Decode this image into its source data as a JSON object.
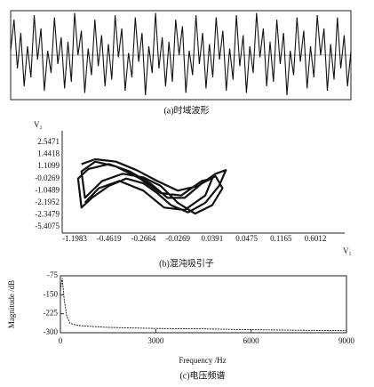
{
  "chart_data": [
    {
      "type": "line",
      "caption": "(a)时域波形",
      "ylim": [
        -1,
        1
      ],
      "values": [
        0.1,
        0.8,
        -0.3,
        0.5,
        -0.7,
        0.2,
        -0.5,
        0.9,
        -0.1,
        0.6,
        -0.8,
        0.1,
        -0.4,
        0.85,
        -0.2,
        0.4,
        -0.75,
        0.3,
        -0.6,
        0.95,
        0.0,
        0.55,
        -0.85,
        0.15,
        -0.45,
        0.8,
        -0.25,
        0.45,
        -0.7,
        0.25,
        -0.55,
        0.9,
        -0.05,
        0.6,
        -0.8,
        0.05,
        -0.5,
        0.85,
        -0.15,
        0.5,
        -0.9,
        0.2,
        -0.4,
        0.95,
        -0.3,
        0.4,
        -0.7,
        0.3,
        -0.6,
        0.8,
        0.0,
        0.65,
        -0.85,
        0.1,
        -0.45,
        0.9,
        -0.2,
        0.5,
        -0.75,
        0.25,
        -0.5,
        0.85,
        -0.1,
        0.55,
        -0.8,
        0.15,
        -0.55,
        0.9,
        -0.25,
        0.45,
        -0.85,
        0.2,
        -0.4,
        0.95,
        -0.05,
        0.6,
        -0.7,
        0.3,
        -0.6,
        0.8,
        -0.2,
        0.5,
        -0.9,
        0.1,
        -0.45,
        0.85,
        -0.15,
        0.55,
        -0.75,
        0.2,
        -0.5,
        0.9,
        0.0,
        0.6,
        -0.8,
        0.25,
        -0.55,
        0.85,
        -0.3,
        0.45,
        -0.7,
        0.1
      ],
      "color": "#111"
    },
    {
      "type": "trajectory",
      "caption": "(b)混沌吸引子",
      "xlabel": "V₁",
      "ylabel": "V₂",
      "x_labels": [
        "-1.1983",
        "-0.4619",
        "-0.2664",
        "-0.0269",
        "0.0391",
        "0.0475",
        "0.1165",
        "0.6012"
      ],
      "y_labels": [
        "2.5471",
        "1.4418",
        "1.1099",
        "-0.0269",
        "-1.0489",
        "-2.1952",
        "-2.3479",
        "-5.4075"
      ],
      "xlim": [
        -0.5,
        7.5
      ],
      "ylim": [
        7.5,
        -0.5
      ],
      "x": [
        0.2,
        0.6,
        1.2,
        1.8,
        2.4,
        3.0,
        3.6,
        4.1,
        4.4,
        4.2,
        3.8,
        3.3,
        2.8,
        2.4,
        2.0,
        1.5,
        1.0,
        0.5,
        0.2,
        0.1,
        0.4,
        1.0,
        1.6,
        2.2,
        2.7,
        3.2,
        3.7,
        4.1,
        4.3,
        4.0,
        3.5,
        3.0,
        2.5,
        2.0,
        1.4,
        0.8,
        0.3,
        0.2,
        0.6,
        1.2,
        1.9,
        2.5,
        3.1,
        3.7,
        4.0,
        3.8,
        3.2,
        2.6,
        2.0,
        1.3,
        0.7,
        0.3
      ],
      "y": [
        1.8,
        1.4,
        1.6,
        2.3,
        3.2,
        4.0,
        3.6,
        2.6,
        2.3,
        3.6,
        5.0,
        5.8,
        5.2,
        4.2,
        3.4,
        3.0,
        3.6,
        4.6,
        5.4,
        3.0,
        2.2,
        1.8,
        2.4,
        3.4,
        4.6,
        4.6,
        3.4,
        2.8,
        3.8,
        5.2,
        5.9,
        5.0,
        3.6,
        2.9,
        2.6,
        3.2,
        4.6,
        2.4,
        1.6,
        2.0,
        3.0,
        4.2,
        4.4,
        3.2,
        3.0,
        4.4,
        5.6,
        5.4,
        4.0,
        3.2,
        3.8,
        5.0
      ],
      "color": "#111"
    },
    {
      "type": "line",
      "caption": "(c)电压频谱",
      "xlabel": "Frequency /Hz",
      "ylabel": "Magnitude /dB",
      "x": [
        0,
        60,
        120,
        200,
        300,
        500,
        800,
        1500,
        3000,
        4500,
        6000,
        7500,
        9000
      ],
      "values": [
        -130,
        -85,
        -170,
        -235,
        -262,
        -270,
        -274,
        -279,
        -283,
        -285,
        -288,
        -290,
        -292
      ],
      "xlim": [
        0,
        9000
      ],
      "ylim": [
        -300,
        -75
      ],
      "xticks": [
        0,
        3000,
        6000,
        9000
      ],
      "yticks": [
        -75,
        -150,
        -225,
        -300
      ],
      "color": "#111"
    }
  ]
}
